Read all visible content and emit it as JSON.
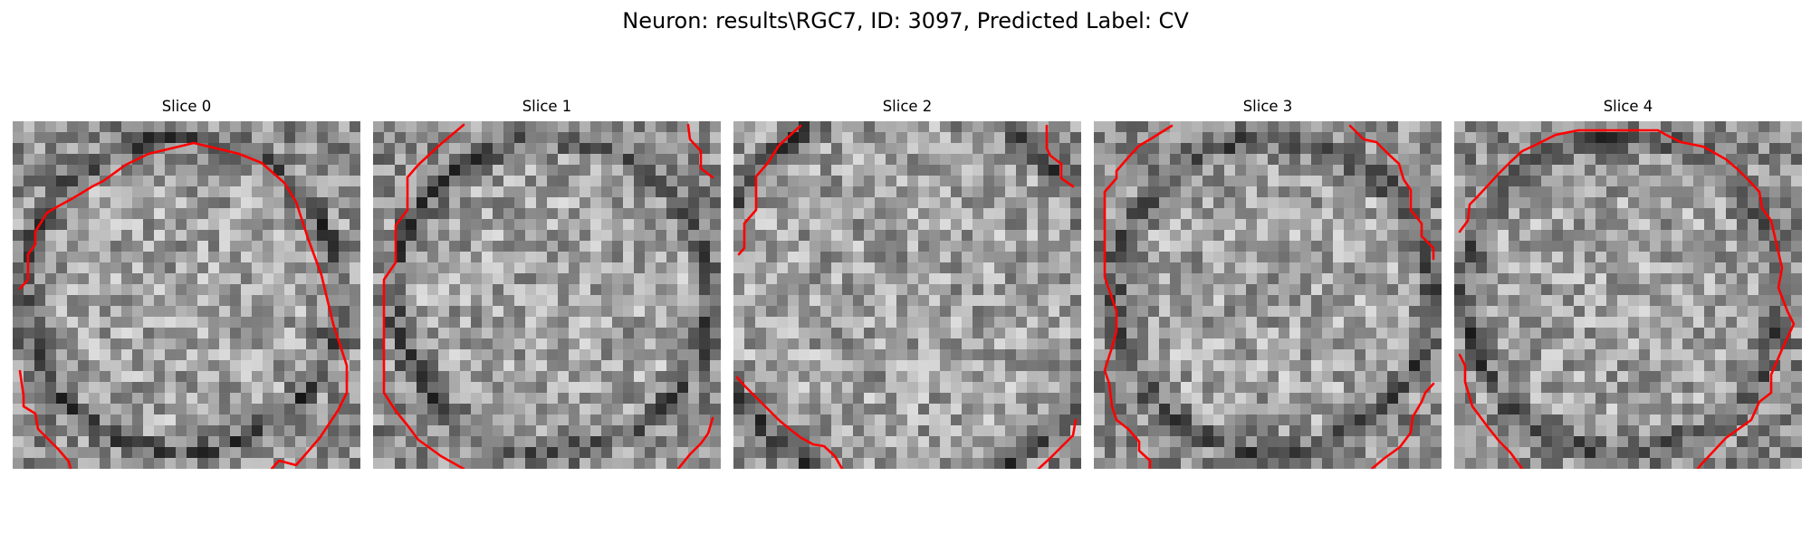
{
  "figure": {
    "title": "Neuron: results\\RGC7, ID: 3097, Predicted Label: CV"
  },
  "colormap": "gray",
  "contour_color": "#ff0000",
  "slices": [
    {
      "title": "Slice 0"
    },
    {
      "title": "Slice 1"
    },
    {
      "title": "Slice 2"
    },
    {
      "title": "Slice 3"
    },
    {
      "title": "Slice 4"
    }
  ]
}
